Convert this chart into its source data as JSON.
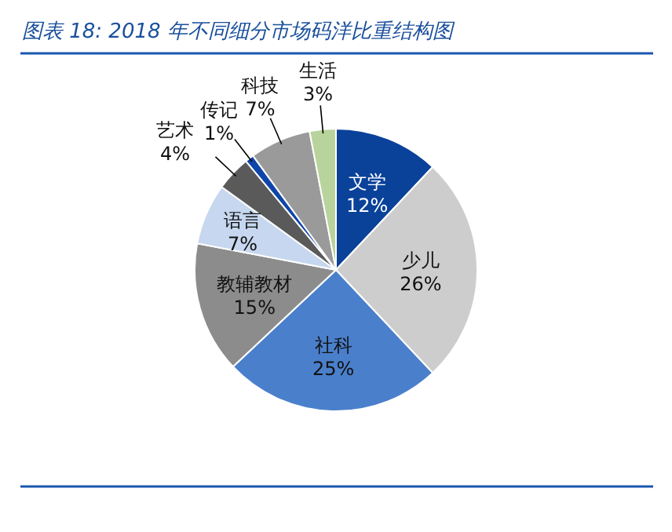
{
  "chart_data": {
    "type": "pie",
    "title": "图表 18: 2018 年不同细分市场码洋比重结构图",
    "categories": [
      "文学",
      "少儿",
      "社科",
      "教辅教材",
      "语言",
      "艺术",
      "传记",
      "科技",
      "生活"
    ],
    "values": [
      12,
      26,
      25,
      15,
      7,
      4,
      1,
      7,
      3
    ],
    "colors": [
      "#0a429a",
      "#cdcdcd",
      "#4a7fcb",
      "#8c8c8c",
      "#c6d7ef",
      "#5a5a5a",
      "#0f45a8",
      "#9a9a9a",
      "#b8d49c"
    ],
    "value_labels": [
      "12%",
      "26%",
      "25%",
      "15%",
      "7%",
      "4%",
      "1%",
      "7%",
      "3%"
    ]
  }
}
